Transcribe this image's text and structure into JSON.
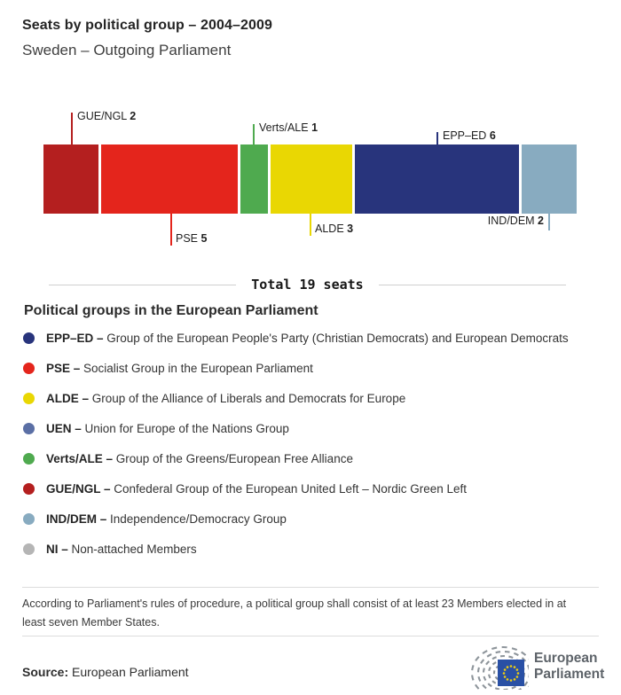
{
  "header": {
    "title": "Seats by political group – 2004–2009",
    "subtitle": "Sweden – Outgoing Parliament"
  },
  "chart_data": {
    "type": "stacked-bar",
    "unit": "seats",
    "total": 19,
    "total_label": "Total 19 seats",
    "series": [
      {
        "group": "GUE/NGL",
        "seats": 2,
        "color": "#b41f1f",
        "label_side": "above"
      },
      {
        "group": "PSE",
        "seats": 5,
        "color": "#e4251c",
        "label_side": "below"
      },
      {
        "group": "Verts/ALE",
        "seats": 1,
        "color": "#4faa4f",
        "label_side": "above"
      },
      {
        "group": "ALDE",
        "seats": 3,
        "color": "#e9d703",
        "label_side": "below"
      },
      {
        "group": "EPP–ED",
        "seats": 6,
        "color": "#28347c",
        "label_side": "above"
      },
      {
        "group": "IND/DEM",
        "seats": 2,
        "color": "#88abc0",
        "label_side": "below"
      }
    ]
  },
  "legend": {
    "heading": "Political groups in the European Parliament",
    "items": [
      {
        "name": "EPP–ED",
        "description": "Group of the European People's Party (Christian Democrats) and European Democrats",
        "color": "#28347c"
      },
      {
        "name": "PSE",
        "description": "Socialist Group in the European Parliament",
        "color": "#e4251c"
      },
      {
        "name": "ALDE",
        "description": "Group of the Alliance of Liberals and Democrats for Europe",
        "color": "#e9d703"
      },
      {
        "name": "UEN",
        "description": "Union for Europe of the Nations Group",
        "color": "#5b6fa5"
      },
      {
        "name": "Verts/ALE",
        "description": "Group of the Greens/European Free Alliance",
        "color": "#4faa4f"
      },
      {
        "name": "GUE/NGL",
        "description": "Confederal Group of the European United Left – Nordic Green Left",
        "color": "#b41f1f"
      },
      {
        "name": "IND/DEM",
        "description": "Independence/Democracy Group",
        "color": "#88abc0"
      },
      {
        "name": "NI",
        "description": "Non-attached Members",
        "color": "#b5b5b5"
      }
    ]
  },
  "footnote": "According to Parliament's rules of procedure, a political group shall consist of at least 23 Members elected in at least seven Member States.",
  "source": {
    "label": "Source:",
    "value": "European Parliament"
  },
  "logo": {
    "line1": "European",
    "line2": "Parliament"
  }
}
